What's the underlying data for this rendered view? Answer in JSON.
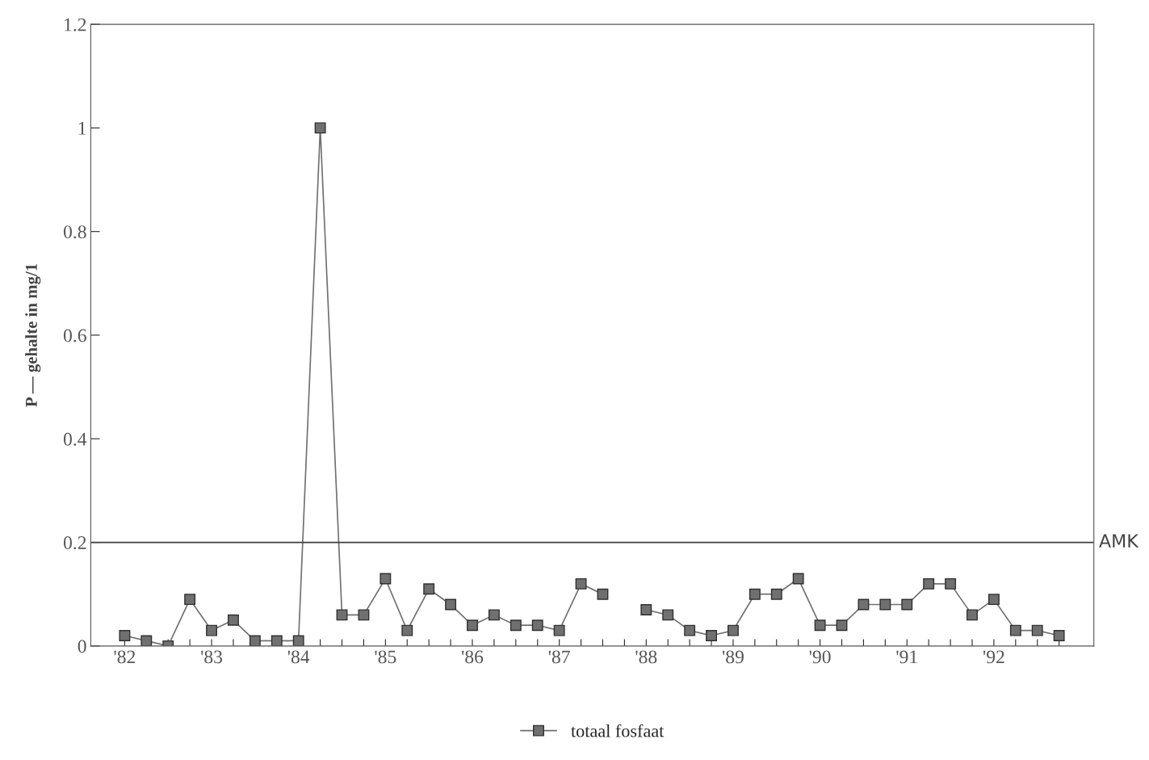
{
  "chart_data": {
    "type": "line",
    "ylabel": "P — gehalte in mg/1",
    "categories": [
      "'82",
      null,
      null,
      null,
      "'83",
      null,
      null,
      null,
      "'84",
      null,
      null,
      null,
      "'85",
      null,
      null,
      null,
      "'86",
      null,
      null,
      null,
      "'87",
      null,
      null,
      null,
      "'88",
      null,
      null,
      null,
      "'89",
      null,
      null,
      null,
      "'90",
      null,
      null,
      null,
      "'91",
      null,
      null,
      null,
      "'92",
      null,
      null,
      null
    ],
    "series": [
      {
        "name": "totaal fosfaat",
        "color": "#707070",
        "values": [
          0.02,
          0.01,
          0.0,
          0.09,
          0.03,
          0.05,
          0.01,
          0.01,
          0.01,
          1.0,
          0.06,
          0.06,
          0.13,
          0.03,
          0.11,
          0.08,
          0.04,
          0.06,
          0.04,
          0.04,
          0.03,
          0.12,
          0.1,
          null,
          0.07,
          0.06,
          0.03,
          0.02,
          0.03,
          0.1,
          0.1,
          0.13,
          0.04,
          0.04,
          0.08,
          0.08,
          0.08,
          0.12,
          0.12,
          0.06,
          0.09,
          0.03,
          0.03,
          0.02
        ]
      }
    ],
    "ylim": [
      0,
      1.2
    ],
    "yticks": [
      0,
      0.2,
      0.4,
      0.6,
      0.8,
      1,
      1.2
    ],
    "ref_lines": [
      {
        "axis": "y",
        "value": 0.2,
        "label": "AMK",
        "color": "#404040"
      }
    ],
    "marker": "square",
    "line_style": "solid",
    "grid": false,
    "legend": "bottom"
  }
}
